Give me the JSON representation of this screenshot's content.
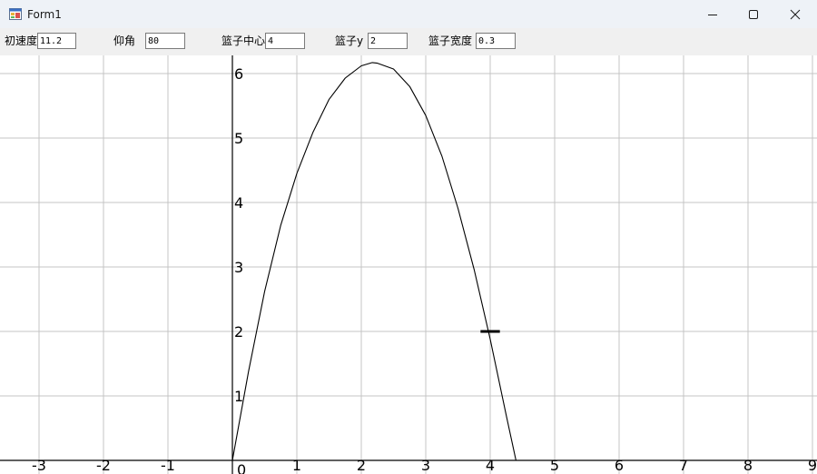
{
  "window": {
    "title": "Form1",
    "minimize_icon": "minimize-icon",
    "maximize_icon": "maximize-icon",
    "close_icon": "close-icon"
  },
  "toolbar": {
    "speed_label": "初速度",
    "speed_value": "11.2",
    "angle_label": "仰角",
    "angle_value": "80",
    "hoop_center_label": "篮子中心",
    "hoop_center_value": "4",
    "hoop_y_label": "篮子y",
    "hoop_y_value": "2",
    "hoop_width_label": "篮子宽度",
    "hoop_width_value": "0.3"
  },
  "chart_data": {
    "type": "line",
    "x_ticks": [
      "-3",
      "-2",
      "-1",
      "0",
      "1",
      "2",
      "3",
      "4",
      "5",
      "6",
      "7",
      "8",
      "9"
    ],
    "y_ticks": [
      "1",
      "2",
      "3",
      "4",
      "5",
      "6"
    ],
    "xlim": [
      -3.6,
      9
    ],
    "ylim": [
      0,
      6.2
    ],
    "grid": true,
    "series": [
      {
        "curve": "projectile trajectory",
        "x": [
          0,
          0.25,
          0.5,
          0.75,
          1.0,
          1.25,
          1.5,
          1.75,
          2.0,
          2.17,
          2.25,
          2.5,
          2.75,
          3.0,
          3.25,
          3.5,
          3.75,
          4.0,
          4.25,
          4.4
        ],
        "y": [
          0,
          1.38,
          2.62,
          3.65,
          4.45,
          5.09,
          5.6,
          5.93,
          6.12,
          6.17,
          6.16,
          6.07,
          5.8,
          5.35,
          4.72,
          3.91,
          2.96,
          1.88,
          0.69,
          0.0
        ]
      }
    ],
    "hoop": {
      "x_center": 4,
      "y": 2,
      "width": 0.3
    }
  }
}
